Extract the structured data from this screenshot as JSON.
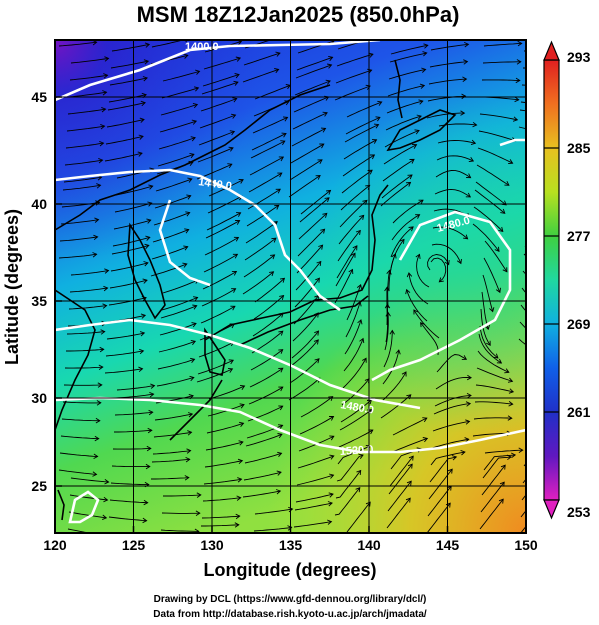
{
  "title": "MSM 18Z12Jan2025 (850.0hPa)",
  "xlabel": "Longitude (degrees)",
  "ylabel": "Latitude  (degrees)",
  "xticks": [
    "120",
    "125",
    "130",
    "135",
    "140",
    "145",
    "150"
  ],
  "yticks": [
    "25",
    "30",
    "35",
    "40",
    "45"
  ],
  "colorbar": {
    "ticks": [
      "293",
      "285",
      "277",
      "269",
      "261",
      "253"
    ],
    "range": [
      253,
      293
    ]
  },
  "contour_labels": [
    "1400.0",
    "1440.0",
    "1480.0",
    "1480.0",
    "1520.0"
  ],
  "credits": {
    "line1": "Drawing by DCL (https://www.gfd-dennou.org/library/dcl/)",
    "line2": "Data from http://database.rish.kyoto-u.ac.jp/arch/jmadata/"
  },
  "chart_data": {
    "type": "heatmap",
    "title": "MSM 18Z12Jan2025 (850.0hPa)",
    "xlabel": "Longitude (degrees)",
    "ylabel": "Latitude  (degrees)",
    "xlim": [
      120,
      150
    ],
    "ylim": [
      22.4,
      47.6
    ],
    "grid": true,
    "shading_variable_range": [
      253,
      293
    ],
    "contour_levels": [
      1400,
      1440,
      1480,
      1520
    ],
    "vectors": "streamlines"
  }
}
